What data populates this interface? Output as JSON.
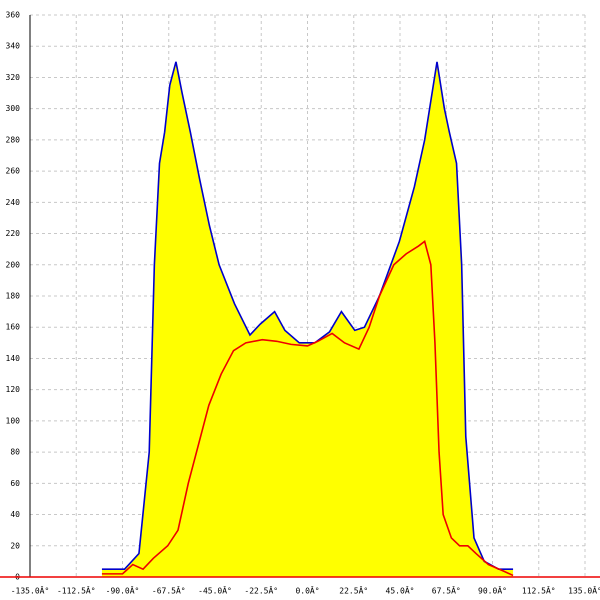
{
  "chart_data": {
    "type": "area",
    "xlim": [
      -135,
      135
    ],
    "ylim": [
      0,
      360
    ],
    "xticks": [
      {
        "value": -135,
        "label": "-135.0Â°"
      },
      {
        "value": -112.5,
        "label": "-112.5Â°"
      },
      {
        "value": -90,
        "label": "-90.0Â°"
      },
      {
        "value": -67.5,
        "label": "-67.5Â°"
      },
      {
        "value": -45,
        "label": "-45.0Â°"
      },
      {
        "value": -22.5,
        "label": "-22.5Â°"
      },
      {
        "value": 0,
        "label": "0.0Â°"
      },
      {
        "value": 22.5,
        "label": "22.5Â°"
      },
      {
        "value": 45,
        "label": "45.0Â°"
      },
      {
        "value": 67.5,
        "label": "67.5Â°"
      },
      {
        "value": 90,
        "label": "90.0Â°"
      },
      {
        "value": 112.5,
        "label": "112.5Â°"
      },
      {
        "value": 135,
        "label": "135.0Â°"
      }
    ],
    "yticks": [
      0,
      20,
      40,
      60,
      80,
      100,
      120,
      140,
      160,
      180,
      200,
      220,
      240,
      260,
      280,
      300,
      320,
      340,
      360
    ],
    "grid": true,
    "series": [
      {
        "color": "#0000cc",
        "fill": "#ffff00",
        "x": [
          -100,
          -89,
          -82,
          -77,
          -74.5,
          -72,
          -69.5,
          -67,
          -64,
          -61,
          -57,
          -52.5,
          -47.7,
          -43,
          -35.5,
          -28,
          -23,
          -16,
          -11,
          -4,
          3.5,
          10.7,
          16.5,
          23,
          27.7,
          35,
          44.7,
          52,
          57,
          63,
          66.6,
          69,
          72.5,
          75,
          77,
          81,
          86,
          93,
          100
        ],
        "values": [
          5,
          5,
          15,
          80,
          200,
          265,
          285,
          315,
          330,
          310,
          285,
          255,
          225,
          200,
          175,
          155,
          162,
          170,
          158,
          150,
          150,
          157,
          170,
          158,
          160,
          180,
          215,
          250,
          280,
          330,
          300,
          285,
          265,
          200,
          90,
          25,
          10,
          5,
          5
        ]
      },
      {
        "color": "#ee0000",
        "x": [
          -100,
          -90,
          -85,
          -80,
          -75,
          -68,
          -63,
          -58,
          -53,
          -48,
          -42,
          -36,
          -30,
          -22,
          -15,
          -8,
          0,
          5,
          12,
          18,
          25,
          30,
          35,
          42,
          48,
          54,
          57,
          60,
          62,
          64,
          66,
          70,
          74,
          78,
          82,
          88,
          95,
          100
        ],
        "values": [
          2,
          2,
          8,
          5,
          12,
          20,
          30,
          60,
          85,
          110,
          130,
          145,
          150,
          152,
          151,
          149,
          148,
          151,
          156,
          150,
          146,
          160,
          180,
          200,
          207,
          212,
          215,
          200,
          150,
          80,
          40,
          25,
          20,
          20,
          15,
          8,
          4,
          1
        ]
      }
    ]
  }
}
